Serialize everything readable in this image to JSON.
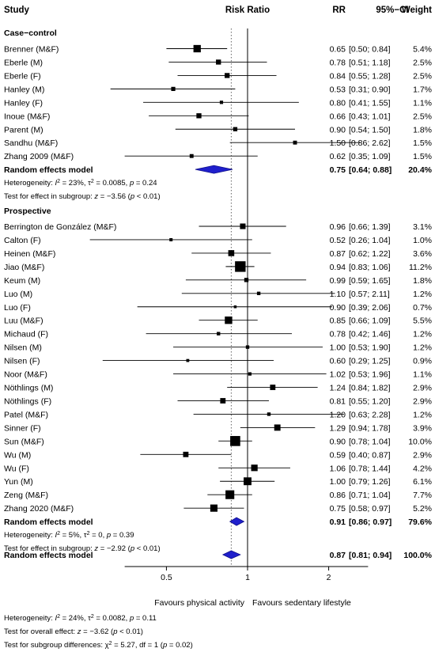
{
  "chart_data": {
    "type": "forest",
    "header": {
      "study": "Study",
      "effect": "Risk Ratio",
      "rr": "RR",
      "ci": "95%−CI",
      "weight": "Weight"
    },
    "x_scale": "log",
    "xlim": [
      0.35,
      2.8
    ],
    "ticks": [
      0.5,
      1,
      2
    ],
    "tick_labels": [
      "0.5",
      "1",
      "2"
    ],
    "reference_line": 1,
    "pooled_dotted_line": 0.87,
    "xlabel_left": "Favours physical activity",
    "xlabel_right": "Favours sedentary lifestyle",
    "subgroups": [
      {
        "title": "Case−control",
        "studies": [
          {
            "name": "Brenner (M&F)",
            "rr": 0.65,
            "lo": 0.5,
            "hi": 0.84,
            "rr_text": "0.65",
            "ci_text": "[0.50; 0.84]",
            "weight_text": "5.4%",
            "weight": 5.4
          },
          {
            "name": "Eberle (M)",
            "rr": 0.78,
            "lo": 0.51,
            "hi": 1.18,
            "rr_text": "0.78",
            "ci_text": "[0.51; 1.18]",
            "weight_text": "2.5%",
            "weight": 2.5
          },
          {
            "name": "Eberle (F)",
            "rr": 0.84,
            "lo": 0.55,
            "hi": 1.28,
            "rr_text": "0.84",
            "ci_text": "[0.55; 1.28]",
            "weight_text": "2.5%",
            "weight": 2.5
          },
          {
            "name": "Hanley (M)",
            "rr": 0.53,
            "lo": 0.31,
            "hi": 0.9,
            "rr_text": "0.53",
            "ci_text": "[0.31; 0.90]",
            "weight_text": "1.7%",
            "weight": 1.7
          },
          {
            "name": "Hanley (F)",
            "rr": 0.8,
            "lo": 0.41,
            "hi": 1.55,
            "rr_text": "0.80",
            "ci_text": "[0.41; 1.55]",
            "weight_text": "1.1%",
            "weight": 1.1
          },
          {
            "name": "Inoue (M&F)",
            "rr": 0.66,
            "lo": 0.43,
            "hi": 1.01,
            "rr_text": "0.66",
            "ci_text": "[0.43; 1.01]",
            "weight_text": "2.5%",
            "weight": 2.5
          },
          {
            "name": "Parent (M)",
            "rr": 0.9,
            "lo": 0.54,
            "hi": 1.5,
            "rr_text": "0.90",
            "ci_text": "[0.54; 1.50]",
            "weight_text": "1.8%",
            "weight": 1.8
          },
          {
            "name": "Sandhu (M&F)",
            "rr": 1.5,
            "lo": 0.86,
            "hi": 2.62,
            "rr_text": "1.50",
            "ci_text": "[0.86; 2.62]",
            "weight_text": "1.5%",
            "weight": 1.5
          },
          {
            "name": "Zhang 2009 (M&F)",
            "rr": 0.62,
            "lo": 0.35,
            "hi": 1.09,
            "rr_text": "0.62",
            "ci_text": "[0.35; 1.09]",
            "weight_text": "1.5%",
            "weight": 1.5
          }
        ],
        "pooled": {
          "name": "Random effects model",
          "rr": 0.75,
          "lo": 0.64,
          "hi": 0.88,
          "rr_text": "0.75",
          "ci_text": "[0.64; 0.88]",
          "weight_text": "20.4%"
        },
        "heterogeneity": {
          "i2": "23%",
          "tau2": "0.0085",
          "p": "0.24"
        },
        "effect_test": {
          "z": "−3.56",
          "p": "< 0.01"
        }
      },
      {
        "title": "Prospective",
        "studies": [
          {
            "name": "Berrington de González (M&F)",
            "rr": 0.96,
            "lo": 0.66,
            "hi": 1.39,
            "rr_text": "0.96",
            "ci_text": "[0.66; 1.39]",
            "weight_text": "3.1%",
            "weight": 3.1
          },
          {
            "name": "Calton (F)",
            "rr": 0.52,
            "lo": 0.26,
            "hi": 1.04,
            "rr_text": "0.52",
            "ci_text": "[0.26; 1.04]",
            "weight_text": "1.0%",
            "weight": 1.0
          },
          {
            "name": "Heinen (M&F)",
            "rr": 0.87,
            "lo": 0.62,
            "hi": 1.22,
            "rr_text": "0.87",
            "ci_text": "[0.62; 1.22]",
            "weight_text": "3.6%",
            "weight": 3.6
          },
          {
            "name": "Jiao (M&F)",
            "rr": 0.94,
            "lo": 0.83,
            "hi": 1.06,
            "rr_text": "0.94",
            "ci_text": "[0.83; 1.06]",
            "weight_text": "11.2%",
            "weight": 11.2
          },
          {
            "name": "Keum (M)",
            "rr": 0.99,
            "lo": 0.59,
            "hi": 1.65,
            "rr_text": "0.99",
            "ci_text": "[0.59; 1.65]",
            "weight_text": "1.8%",
            "weight": 1.8
          },
          {
            "name": "Luo (M)",
            "rr": 1.1,
            "lo": 0.57,
            "hi": 2.11,
            "rr_text": "1.10",
            "ci_text": "[0.57; 2.11]",
            "weight_text": "1.2%",
            "weight": 1.2
          },
          {
            "name": "Luo (F)",
            "rr": 0.9,
            "lo": 0.39,
            "hi": 2.06,
            "rr_text": "0.90",
            "ci_text": "[0.39; 2.06]",
            "weight_text": "0.7%",
            "weight": 0.7
          },
          {
            "name": "Luu (M&F)",
            "rr": 0.85,
            "lo": 0.66,
            "hi": 1.09,
            "rr_text": "0.85",
            "ci_text": "[0.66; 1.09]",
            "weight_text": "5.5%",
            "weight": 5.5
          },
          {
            "name": "Michaud (F)",
            "rr": 0.78,
            "lo": 0.42,
            "hi": 1.46,
            "rr_text": "0.78",
            "ci_text": "[0.42; 1.46]",
            "weight_text": "1.2%",
            "weight": 1.2
          },
          {
            "name": "Nilsen (M)",
            "rr": 1.0,
            "lo": 0.53,
            "hi": 1.9,
            "rr_text": "1.00",
            "ci_text": "[0.53; 1.90]",
            "weight_text": "1.2%",
            "weight": 1.2
          },
          {
            "name": "Nilsen (F)",
            "rr": 0.6,
            "lo": 0.29,
            "hi": 1.25,
            "rr_text": "0.60",
            "ci_text": "[0.29; 1.25]",
            "weight_text": "0.9%",
            "weight": 0.9
          },
          {
            "name": "Noor (M&F)",
            "rr": 1.02,
            "lo": 0.53,
            "hi": 1.96,
            "rr_text": "1.02",
            "ci_text": "[0.53; 1.96]",
            "weight_text": "1.1%",
            "weight": 1.1
          },
          {
            "name": "Nöthlings (M)",
            "rr": 1.24,
            "lo": 0.84,
            "hi": 1.82,
            "rr_text": "1.24",
            "ci_text": "[0.84; 1.82]",
            "weight_text": "2.9%",
            "weight": 2.9
          },
          {
            "name": "Nöthlings (F)",
            "rr": 0.81,
            "lo": 0.55,
            "hi": 1.2,
            "rr_text": "0.81",
            "ci_text": "[0.55; 1.20]",
            "weight_text": "2.9%",
            "weight": 2.9
          },
          {
            "name": "Patel (M&F)",
            "rr": 1.2,
            "lo": 0.63,
            "hi": 2.28,
            "rr_text": "1.20",
            "ci_text": "[0.63; 2.28]",
            "weight_text": "1.2%",
            "weight": 1.2
          },
          {
            "name": "Sinner (F)",
            "rr": 1.29,
            "lo": 0.94,
            "hi": 1.78,
            "rr_text": "1.29",
            "ci_text": "[0.94; 1.78]",
            "weight_text": "3.9%",
            "weight": 3.9
          },
          {
            "name": "Sun (M&F)",
            "rr": 0.9,
            "lo": 0.78,
            "hi": 1.04,
            "rr_text": "0.90",
            "ci_text": "[0.78; 1.04]",
            "weight_text": "10.0%",
            "weight": 10.0
          },
          {
            "name": "Wu (M)",
            "rr": 0.59,
            "lo": 0.4,
            "hi": 0.87,
            "rr_text": "0.59",
            "ci_text": "[0.40; 0.87]",
            "weight_text": "2.9%",
            "weight": 2.9
          },
          {
            "name": "Wu (F)",
            "rr": 1.06,
            "lo": 0.78,
            "hi": 1.44,
            "rr_text": "1.06",
            "ci_text": "[0.78; 1.44]",
            "weight_text": "4.2%",
            "weight": 4.2
          },
          {
            "name": "Yun (M)",
            "rr": 1.0,
            "lo": 0.79,
            "hi": 1.26,
            "rr_text": "1.00",
            "ci_text": "[0.79; 1.26]",
            "weight_text": "6.1%",
            "weight": 6.1
          },
          {
            "name": "Zeng (M&F)",
            "rr": 0.86,
            "lo": 0.71,
            "hi": 1.04,
            "rr_text": "0.86",
            "ci_text": "[0.71; 1.04]",
            "weight_text": "7.7%",
            "weight": 7.7
          },
          {
            "name": "Zhang 2020 (M&F)",
            "rr": 0.75,
            "lo": 0.58,
            "hi": 0.97,
            "rr_text": "0.75",
            "ci_text": "[0.58; 0.97]",
            "weight_text": "5.2%",
            "weight": 5.2
          }
        ],
        "pooled": {
          "name": "Random effects model",
          "rr": 0.91,
          "lo": 0.86,
          "hi": 0.97,
          "rr_text": "0.91",
          "ci_text": "[0.86; 0.97]",
          "weight_text": "79.6%"
        },
        "heterogeneity": {
          "i2": "5%",
          "tau2": "0",
          "p": "0.39"
        },
        "effect_test": {
          "z": "−2.92",
          "p": "< 0.01"
        }
      }
    ],
    "overall": {
      "name": "Random effects model",
      "rr": 0.87,
      "lo": 0.81,
      "hi": 0.94,
      "rr_text": "0.87",
      "ci_text": "[0.81; 0.94]",
      "weight_text": "100.0%"
    },
    "overall_heterogeneity": {
      "i2": "24%",
      "tau2": "0.0082",
      "p": "0.11"
    },
    "overall_effect_test": {
      "z": "−3.62",
      "p": "< 0.01"
    },
    "subgroup_difference_test": {
      "chi2": "5.27",
      "df": "1",
      "p": "0.02"
    },
    "colors": {
      "diamond_fill": "#1f1fcc",
      "diamond_stroke": "#10108a",
      "marker": "#000000",
      "line": "#000000"
    }
  }
}
